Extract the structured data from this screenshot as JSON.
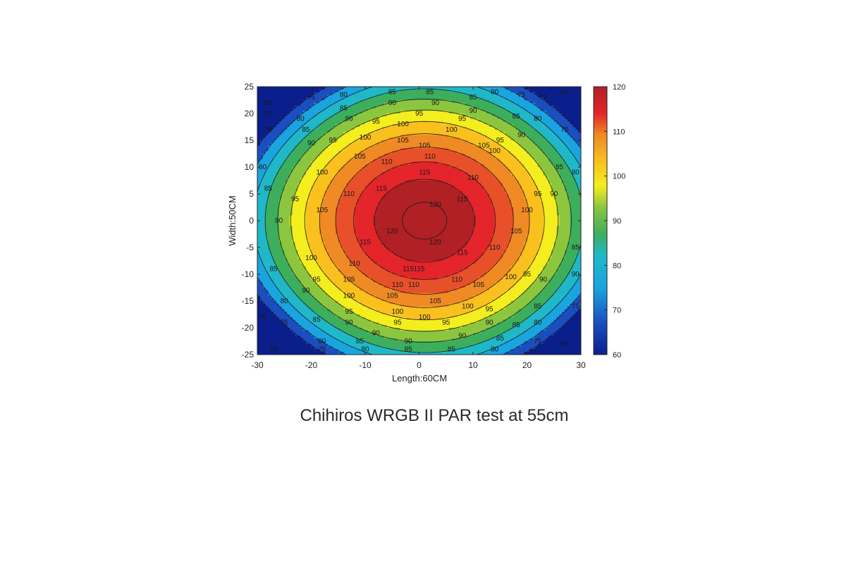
{
  "caption": "Chihiros WRGB II PAR test at 55cm",
  "chart_data": {
    "type": "heatmap",
    "subtype": "filled-contour",
    "title": "",
    "xlabel": "Length:60CM",
    "ylabel": "Width:50CM",
    "xlim": [
      -30,
      30
    ],
    "ylim": [
      -25,
      25
    ],
    "x_ticks": [
      -30,
      -20,
      -10,
      0,
      10,
      20,
      30
    ],
    "y_ticks": [
      25,
      20,
      15,
      10,
      5,
      0,
      -5,
      -10,
      -15,
      -20,
      -25
    ],
    "contour_levels": [
      65,
      70,
      75,
      80,
      85,
      90,
      95,
      100,
      105,
      110,
      115,
      120
    ],
    "peak": {
      "x": 1,
      "y": 0,
      "value": 122
    },
    "corner_values": {
      "top_left": 60,
      "top_right": 62,
      "bottom_left": 61,
      "bottom_right": 61
    },
    "colorbar": {
      "min": 60,
      "max": 120,
      "ticks": [
        120,
        110,
        100,
        90,
        80,
        70,
        60
      ],
      "colormap": "jet",
      "colors": [
        "#0a1e8c",
        "#1b4fc0",
        "#1aa4e0",
        "#20b8c8",
        "#3cae5c",
        "#8cc63f",
        "#f4ee1e",
        "#f9c01e",
        "#f08a24",
        "#e8502a",
        "#e4252a",
        "#b02024"
      ]
    },
    "contour_labels": [
      {
        "x": -28,
        "y": 22,
        "v": "65"
      },
      {
        "x": -20,
        "y": 23,
        "v": "75"
      },
      {
        "x": -14,
        "y": 23.5,
        "v": "80"
      },
      {
        "x": -5,
        "y": 24,
        "v": "85"
      },
      {
        "x": 2,
        "y": 24,
        "v": "85"
      },
      {
        "x": 10,
        "y": 23,
        "v": "85"
      },
      {
        "x": 14,
        "y": 24,
        "v": "80"
      },
      {
        "x": 19,
        "y": 23.5,
        "v": "75"
      },
      {
        "x": 23,
        "y": 23,
        "v": "70"
      },
      {
        "x": 27,
        "y": 24,
        "v": "65"
      },
      {
        "x": -28,
        "y": 20,
        "v": "70"
      },
      {
        "x": -22,
        "y": 19,
        "v": "80"
      },
      {
        "x": -14,
        "y": 21,
        "v": "85"
      },
      {
        "x": -5,
        "y": 22,
        "v": "90"
      },
      {
        "x": 3,
        "y": 22,
        "v": "90"
      },
      {
        "x": 10,
        "y": 20.5,
        "v": "90"
      },
      {
        "x": 18,
        "y": 19.5,
        "v": "85"
      },
      {
        "x": 22,
        "y": 19,
        "v": "80"
      },
      {
        "x": 27,
        "y": 17,
        "v": "75"
      },
      {
        "x": -28,
        "y": 17,
        "v": "75"
      },
      {
        "x": -21,
        "y": 17,
        "v": "85"
      },
      {
        "x": -13,
        "y": 19,
        "v": "90"
      },
      {
        "x": -8,
        "y": 18.5,
        "v": "95"
      },
      {
        "x": 0,
        "y": 20,
        "v": "95"
      },
      {
        "x": 8,
        "y": 19,
        "v": "95"
      },
      {
        "x": -20,
        "y": 14.5,
        "v": "90"
      },
      {
        "x": -16,
        "y": 15,
        "v": "95"
      },
      {
        "x": -10,
        "y": 15.5,
        "v": "100"
      },
      {
        "x": -3,
        "y": 18,
        "v": "100"
      },
      {
        "x": 6,
        "y": 17,
        "v": "100"
      },
      {
        "x": 15,
        "y": 15,
        "v": "95"
      },
      {
        "x": 19,
        "y": 16,
        "v": "90"
      },
      {
        "x": -11,
        "y": 12,
        "v": "105"
      },
      {
        "x": -3,
        "y": 15,
        "v": "105"
      },
      {
        "x": 1,
        "y": 14,
        "v": "105"
      },
      {
        "x": 14,
        "y": 13,
        "v": "100"
      },
      {
        "x": 12,
        "y": 14,
        "v": "105"
      },
      {
        "x": -29,
        "y": 10,
        "v": "80"
      },
      {
        "x": -18,
        "y": 9,
        "v": "100"
      },
      {
        "x": -6,
        "y": 11,
        "v": "110"
      },
      {
        "x": 2,
        "y": 12,
        "v": "110"
      },
      {
        "x": 10,
        "y": 8,
        "v": "110"
      },
      {
        "x": 26,
        "y": 10,
        "v": "85"
      },
      {
        "x": 29,
        "y": 9,
        "v": "80"
      },
      {
        "x": -28,
        "y": 6,
        "v": "85"
      },
      {
        "x": -23,
        "y": 4,
        "v": "95"
      },
      {
        "x": -13,
        "y": 5,
        "v": "110"
      },
      {
        "x": -7,
        "y": 6,
        "v": "115"
      },
      {
        "x": 1,
        "y": 9,
        "v": "115"
      },
      {
        "x": 8,
        "y": 4,
        "v": "115"
      },
      {
        "x": 22,
        "y": 5,
        "v": "95"
      },
      {
        "x": 25,
        "y": 5,
        "v": "90"
      },
      {
        "x": 3,
        "y": 3,
        "v": "120"
      },
      {
        "x": -18,
        "y": 2,
        "v": "105"
      },
      {
        "x": -26,
        "y": 0,
        "v": "90"
      },
      {
        "x": 20,
        "y": 2,
        "v": "100"
      },
      {
        "x": -5,
        "y": -2,
        "v": "120"
      },
      {
        "x": 3,
        "y": -4,
        "v": "120"
      },
      {
        "x": -10,
        "y": -4,
        "v": "115"
      },
      {
        "x": 18,
        "y": -2,
        "v": "105"
      },
      {
        "x": 14,
        "y": -5,
        "v": "110"
      },
      {
        "x": 8,
        "y": -6,
        "v": "115"
      },
      {
        "x": 29,
        "y": -5,
        "v": "85"
      },
      {
        "x": -20,
        "y": -7,
        "v": "100"
      },
      {
        "x": -12,
        "y": -8,
        "v": "110"
      },
      {
        "x": -2,
        "y": -9,
        "v": "115"
      },
      {
        "x": 0,
        "y": -9,
        "v": "115"
      },
      {
        "x": 17,
        "y": -10.5,
        "v": "100"
      },
      {
        "x": 20,
        "y": -10,
        "v": "95"
      },
      {
        "x": 23,
        "y": -11,
        "v": "90"
      },
      {
        "x": 29,
        "y": -10,
        "v": "90"
      },
      {
        "x": -27,
        "y": -9,
        "v": "85"
      },
      {
        "x": -19,
        "y": -11,
        "v": "95"
      },
      {
        "x": -13,
        "y": -11,
        "v": "105"
      },
      {
        "x": -4,
        "y": -12,
        "v": "110"
      },
      {
        "x": -1,
        "y": -12,
        "v": "110"
      },
      {
        "x": 7,
        "y": -11,
        "v": "110"
      },
      {
        "x": 11,
        "y": -12,
        "v": "105"
      },
      {
        "x": -21,
        "y": -13,
        "v": "90"
      },
      {
        "x": -13,
        "y": -14,
        "v": "100"
      },
      {
        "x": -5,
        "y": -14,
        "v": "105"
      },
      {
        "x": 3,
        "y": -15,
        "v": "105"
      },
      {
        "x": 9,
        "y": -16,
        "v": "100"
      },
      {
        "x": 13,
        "y": -16.5,
        "v": "95"
      },
      {
        "x": 22,
        "y": -16,
        "v": "85"
      },
      {
        "x": 29,
        "y": -16,
        "v": "75"
      },
      {
        "x": -25,
        "y": -15,
        "v": "80"
      },
      {
        "x": -13,
        "y": -17,
        "v": "95"
      },
      {
        "x": -4,
        "y": -17,
        "v": "100"
      },
      {
        "x": 1,
        "y": -18,
        "v": "100"
      },
      {
        "x": -29,
        "y": -18,
        "v": "70"
      },
      {
        "x": -19,
        "y": -18.5,
        "v": "85"
      },
      {
        "x": -13,
        "y": -19,
        "v": "90"
      },
      {
        "x": -4,
        "y": -19,
        "v": "95"
      },
      {
        "x": 5,
        "y": -19,
        "v": "95"
      },
      {
        "x": 13,
        "y": -19,
        "v": "90"
      },
      {
        "x": 18,
        "y": -19.5,
        "v": "85"
      },
      {
        "x": 22,
        "y": -19,
        "v": "80"
      },
      {
        "x": -25,
        "y": -19,
        "v": "75"
      },
      {
        "x": -8,
        "y": -21,
        "v": "90"
      },
      {
        "x": 8,
        "y": -21.5,
        "v": "90"
      },
      {
        "x": 15,
        "y": -22,
        "v": "85"
      },
      {
        "x": -18,
        "y": -22.5,
        "v": "80"
      },
      {
        "x": -11,
        "y": -22.5,
        "v": "85"
      },
      {
        "x": -10,
        "y": -24,
        "v": "80"
      },
      {
        "x": -2,
        "y": -22.5,
        "v": "90"
      },
      {
        "x": 22,
        "y": -22.5,
        "v": "75"
      },
      {
        "x": 27,
        "y": -23,
        "v": "65"
      },
      {
        "x": -27,
        "y": -24,
        "v": "65"
      },
      {
        "x": -18,
        "y": -24,
        "v": "75"
      },
      {
        "x": -2,
        "y": -24,
        "v": "85"
      },
      {
        "x": 6,
        "y": -24,
        "v": "85"
      },
      {
        "x": 14,
        "y": -24,
        "v": "80"
      },
      {
        "x": 21,
        "y": -24.5,
        "v": "70"
      }
    ]
  }
}
